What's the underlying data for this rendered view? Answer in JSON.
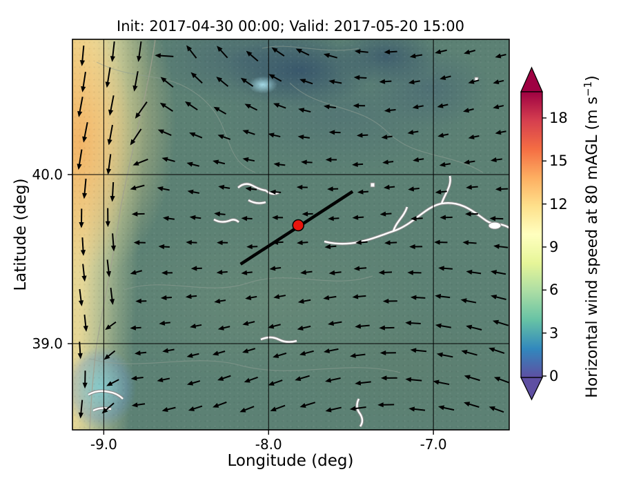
{
  "title": "Init: 2017-04-30 00:00; Valid: 2017-05-20 15:00",
  "axes": {
    "xlabel": "Longitude (deg)",
    "ylabel": "Latitude (deg)",
    "xticks": [
      {
        "value": -9.0,
        "label": "-9.0"
      },
      {
        "value": -8.0,
        "label": "-8.0"
      },
      {
        "value": -7.0,
        "label": "-7.0"
      }
    ],
    "yticks": [
      {
        "value": 40.0,
        "label": "40.0"
      },
      {
        "value": 39.0,
        "label": "39.0"
      }
    ]
  },
  "colorbar": {
    "label_prefix": "Horizontal wind speed at 80 mAGL (m s",
    "label_sup": "−1",
    "label_suffix": ")",
    "ticks": [
      {
        "value": 0,
        "label": "0"
      },
      {
        "value": 3,
        "label": "3"
      },
      {
        "value": 6,
        "label": "6"
      },
      {
        "value": 9,
        "label": "9"
      },
      {
        "value": 12,
        "label": "12"
      },
      {
        "value": 15,
        "label": "15"
      },
      {
        "value": 18,
        "label": "18"
      }
    ],
    "colors_top_to_bottom": [
      "#9e0142",
      "#d53e4f",
      "#f46d43",
      "#fdae61",
      "#fee08b",
      "#ffffbf",
      "#e6f598",
      "#abdda4",
      "#66c2a5",
      "#3288bd",
      "#5e4fa2"
    ],
    "over_color": "#9e0142",
    "under_color": "#5e4fa2"
  },
  "chart_data": {
    "type": "heatmap",
    "subtype": "filled-contour wind-speed map with quiver (wind direction) arrows",
    "description": "Model wind forecast map: shaded 80 m AGL horizontal wind speed with black wind-direction arrows over the western Iberian Peninsula; a red circular marker and a black transect line are drawn near 39.7N, -7.8E.",
    "title": "Init: 2017-04-30 00:00; Valid: 2017-05-20 15:00",
    "xlabel": "Longitude (deg)",
    "ylabel": "Latitude (deg)",
    "xlim": [
      -9.19,
      -6.54
    ],
    "ylim": [
      38.49,
      40.8
    ],
    "xticks": [
      -9.0,
      -8.0,
      -7.0
    ],
    "yticks": [
      39.0,
      40.0
    ],
    "grid": true,
    "colorbar_label": "Horizontal wind speed at 80 mAGL (m s^-1)",
    "colorbar_ticks": [
      0,
      3,
      6,
      9,
      12,
      15,
      18
    ],
    "colorbar_range": [
      0,
      19.8
    ],
    "colormap": "Spectral reversed (purple-blue low, pale yellow mid ~9, dark red high), extended arrows both ends",
    "features": {
      "marker": {
        "lon": -7.82,
        "lat": 39.7,
        "shape": "circle",
        "color": "#e8150d"
      },
      "transect": {
        "from": {
          "lon": -8.17,
          "lat": 39.47
        },
        "to": {
          "lon": -7.49,
          "lat": 39.9
        },
        "color": "#000000"
      }
    },
    "wind_field_summary": [
      {
        "region": "offshore / coastal strip west of about -9.0 deg",
        "arrow_direction": "southward (wind from north)",
        "speed_m_s": [
          9,
          12
        ]
      },
      {
        "region": "inland, most of the domain",
        "arrow_direction": "westward (wind from east)",
        "speed_m_s": [
          4,
          8
        ]
      },
      {
        "region": "dark blue north-central patches",
        "arrow_direction": "west to up-left, variable",
        "speed_m_s": [
          2,
          5
        ]
      }
    ],
    "quiver": {
      "cols": 16,
      "rows": 14
    }
  }
}
